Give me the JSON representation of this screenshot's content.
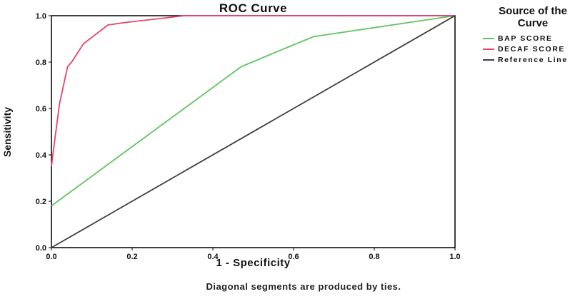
{
  "caption": "Diagonal segments are produced by ties.",
  "legend": {
    "title": "Source of the Curve",
    "entries": [
      {
        "label": "BAP SCORE",
        "color": "#62c462"
      },
      {
        "label": "DECAF SCORE",
        "color": "#e8436f"
      },
      {
        "label": "Reference Line",
        "color": "#3f3f3f"
      }
    ]
  },
  "chart_data": {
    "type": "line",
    "title": "ROC Curve",
    "xlabel": "1 - Specificity",
    "ylabel": "Sensitivity",
    "xlim": [
      0,
      1
    ],
    "ylim": [
      0,
      1
    ],
    "xticks": [
      "0.0",
      "0.2",
      "0.4",
      "0.6",
      "0.8",
      "1.0"
    ],
    "yticks": [
      "0.0",
      "0.2",
      "0.4",
      "0.6",
      "0.8",
      "1.0"
    ],
    "grid": false,
    "legend_position": "right",
    "series": [
      {
        "name": "BAP SCORE",
        "color": "#62c462",
        "points": [
          [
            0.0,
            0.18
          ],
          [
            0.47,
            0.78
          ],
          [
            0.58,
            0.86
          ],
          [
            0.65,
            0.91
          ],
          [
            1.0,
            1.0
          ]
        ]
      },
      {
        "name": "DECAF SCORE",
        "color": "#e8436f",
        "points": [
          [
            0.0,
            0.35
          ],
          [
            0.005,
            0.42
          ],
          [
            0.02,
            0.62
          ],
          [
            0.04,
            0.78
          ],
          [
            0.05,
            0.8
          ],
          [
            0.08,
            0.88
          ],
          [
            0.14,
            0.96
          ],
          [
            0.18,
            0.97
          ],
          [
            0.33,
            1.0
          ],
          [
            1.0,
            1.0
          ]
        ]
      },
      {
        "name": "Reference Line",
        "color": "#3f3f3f",
        "points": [
          [
            0.0,
            0.0
          ],
          [
            1.0,
            1.0
          ]
        ]
      }
    ]
  }
}
